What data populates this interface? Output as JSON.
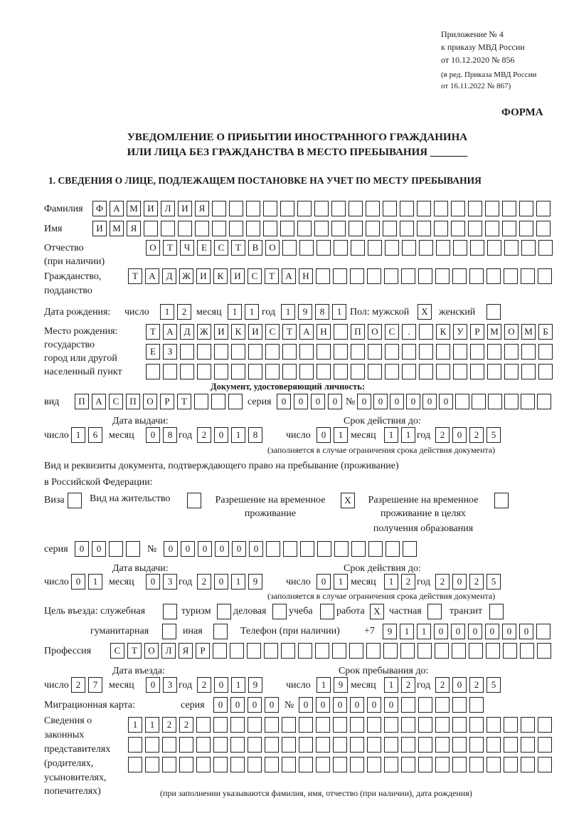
{
  "header": {
    "appendix": [
      "Приложение № 4",
      "к приказу МВД России",
      "от 10.12.2020 № 856"
    ],
    "edition": [
      "(в ред. Приказа МВД России",
      "от 16.11.2022 № 867)"
    ],
    "form_label": "ФОРМА",
    "title_line1": "УВЕДОМЛЕНИЕ О ПРИБЫТИИ ИНОСТРАННОГО ГРАЖДАНИНА",
    "title_line2": "ИЛИ ЛИЦА БЕЗ ГРАЖДАНСТВА В МЕСТО ПРЕБЫВАНИЯ _______",
    "section1": "1. СВЕДЕНИЯ О ЛИЦЕ, ПОДЛЕЖАЩЕМ ПОСТАНОВКЕ НА УЧЕТ ПО МЕСТУ ПРЕБЫВАНИЯ"
  },
  "labels": {
    "surname": "Фамилия",
    "name": "Имя",
    "patronymic": "Отчество",
    "patronymic_note": "(при наличии)",
    "citizenship": "Гражданство,",
    "citizenship2": "подданство",
    "birth_date": "Дата рождения:",
    "day": "число",
    "month": "месяц",
    "year": "год",
    "sex": "Пол: мужской",
    "female": "женский",
    "birthplace": [
      "Место рождения:",
      "государство",
      "город или другой",
      "населенный пункт"
    ],
    "id_doc": "Документ, удостоверяющий личность:",
    "kind": "вид",
    "series": "серия",
    "number": "№",
    "issue_date": "Дата выдачи:",
    "valid_until": "Срок действия до:",
    "validity_note": "(заполняется в случае ограничения срока действия документа)",
    "residence_doc1": "Вид и реквизиты документа, подтверждающего право на пребывание (проживание)",
    "residence_doc2": "в Российской Федерации:",
    "visa": "Виза",
    "residence_permit": "Вид на жительство",
    "temp_residence": [
      "Разрешение на временное",
      "проживание"
    ],
    "temp_residence_edu": [
      "Разрешение на временное",
      "проживание в целях",
      "получения образования"
    ],
    "purpose": "Цель въезда: служебная",
    "tourism": "туризм",
    "business": "деловая",
    "study": "учеба",
    "work": "работа",
    "private": "частная",
    "transit": "транзит",
    "humanitarian": "гуманитарная",
    "other": "иная",
    "phone": "Телефон (при наличии)",
    "phone_prefix": "+7",
    "profession": "Профессия",
    "entry_date": "Дата въезда:",
    "stay_until": "Срок пребывания до:",
    "migration_card": "Миграционная карта:",
    "representatives": [
      "Сведения о",
      "законных",
      "представителях",
      "(родителях,",
      "усыновителях,",
      "попечителях)"
    ],
    "representatives_note": "(при заполнении указываются фамилия, имя, отчество (при наличии), дата рождения)"
  },
  "values": {
    "surname": "ФАМИЛИЯ",
    "name": "ИМЯ",
    "patronymic": "ОТЧЕСТВО",
    "citizenship": "ТАДЖИКИСТАН",
    "birth_day": "12",
    "birth_month": "11",
    "birth_year": "1981",
    "male": "X",
    "female": "",
    "birthplace1": "ТАДЖИКИСТАН ПОС. КУРМОМБ",
    "birthplace2": "ЕЗ",
    "birthplace3": "",
    "id_kind": "ПАСПОРТ",
    "id_series": "0000",
    "id_number": "000000",
    "id_issue_day": "16",
    "id_issue_month": "08",
    "id_issue_year": "2018",
    "id_valid_day": "01",
    "id_valid_month": "11",
    "id_valid_year": "2025",
    "visa": "",
    "residence_permit": "",
    "temp_residence": "X",
    "temp_residence_edu": "",
    "rd_series": "00",
    "rd_number": "000000",
    "rd_issue_day": "01",
    "rd_issue_month": "03",
    "rd_issue_year": "2019",
    "rd_valid_day": "01",
    "rd_valid_month": "12",
    "rd_valid_year": "2025",
    "purpose_service": "",
    "purpose_tourism": "",
    "purpose_business": "",
    "purpose_study": "",
    "purpose_work": "X",
    "purpose_private": "",
    "purpose_transit": "",
    "purpose_humanitarian": "",
    "purpose_other": "",
    "phone": "911000000",
    "profession": "СТОЛЯР",
    "entry_day": "27",
    "entry_month": "03",
    "entry_year": "2019",
    "stay_day": "19",
    "stay_month": "12",
    "stay_year": "2025",
    "mc_series": "0000",
    "mc_number": "000000",
    "rep1": "1122",
    "rep2": "",
    "rep3": ""
  }
}
